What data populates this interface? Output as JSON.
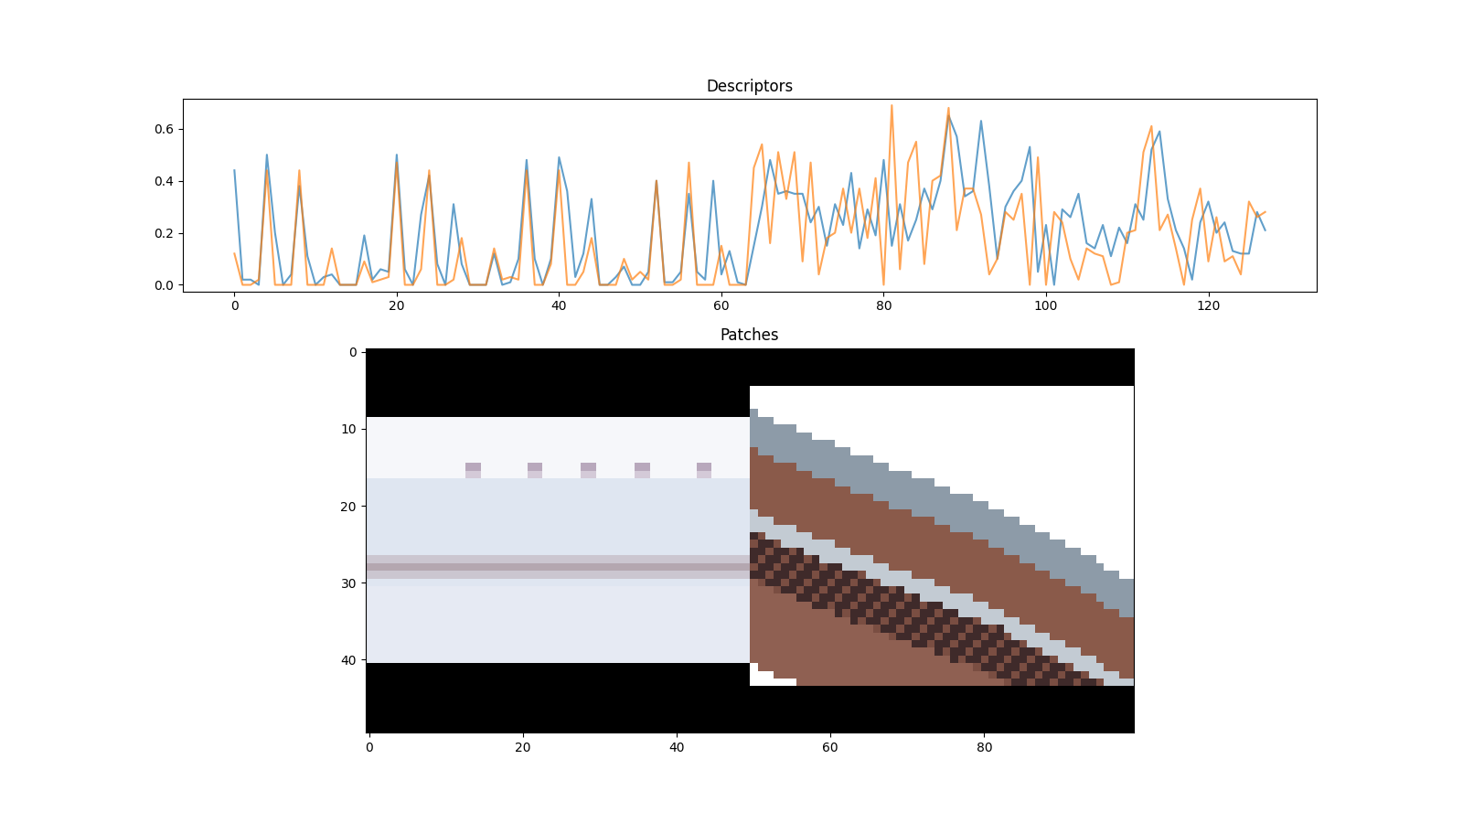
{
  "chart_data": [
    {
      "type": "line",
      "title": "Descriptors",
      "xlim": [
        -6.35,
        133.35
      ],
      "xticks": [
        0,
        20,
        40,
        60,
        80,
        100,
        120
      ],
      "ylim": [
        -0.025,
        0.715
      ],
      "yticks": [
        {
          "value": 0,
          "label": "0.0"
        },
        {
          "value": 0.2,
          "label": "0.2"
        },
        {
          "value": 0.4,
          "label": "0.4"
        },
        {
          "value": 0.6,
          "label": "0.6"
        }
      ],
      "series": [
        {
          "color": "#1f77b4",
          "values": [
            0.44,
            0.02,
            0.02,
            0.0,
            0.5,
            0.2,
            0.0,
            0.04,
            0.38,
            0.11,
            0.0,
            0.03,
            0.04,
            0.0,
            0.0,
            0.0,
            0.19,
            0.02,
            0.06,
            0.05,
            0.5,
            0.06,
            0.0,
            0.27,
            0.42,
            0.08,
            0.0,
            0.31,
            0.08,
            0.0,
            0.0,
            0.0,
            0.12,
            0.0,
            0.01,
            0.1,
            0.48,
            0.1,
            0.0,
            0.1,
            0.49,
            0.36,
            0.03,
            0.12,
            0.33,
            0.0,
            0.0,
            0.03,
            0.07,
            0.0,
            0.0,
            0.05,
            0.4,
            0.01,
            0.01,
            0.05,
            0.35,
            0.05,
            0.02,
            0.4,
            0.04,
            0.13,
            0.01,
            0.0,
            0.15,
            0.3,
            0.48,
            0.35,
            0.36,
            0.35,
            0.35,
            0.24,
            0.3,
            0.15,
            0.31,
            0.23,
            0.43,
            0.14,
            0.29,
            0.19,
            0.48,
            0.15,
            0.31,
            0.17,
            0.25,
            0.37,
            0.29,
            0.4,
            0.65,
            0.57,
            0.34,
            0.36,
            0.63,
            0.38,
            0.1,
            0.3,
            0.36,
            0.4,
            0.53,
            0.05,
            0.23,
            0.0,
            0.29,
            0.26,
            0.35,
            0.16,
            0.14,
            0.23,
            0.11,
            0.22,
            0.16,
            0.31,
            0.25,
            0.52,
            0.59,
            0.33,
            0.21,
            0.14,
            0.02,
            0.24,
            0.32,
            0.2,
            0.24,
            0.13,
            0.12,
            0.12,
            0.28,
            0.21
          ]
        },
        {
          "color": "#ff7f0e",
          "values": [
            0.12,
            0.0,
            0.0,
            0.02,
            0.44,
            0.0,
            0.0,
            0.0,
            0.44,
            0.0,
            0.0,
            0.0,
            0.14,
            0.0,
            0.0,
            0.0,
            0.09,
            0.01,
            0.02,
            0.03,
            0.47,
            0.0,
            0.0,
            0.06,
            0.44,
            0.0,
            0.0,
            0.02,
            0.18,
            0.0,
            0.0,
            0.0,
            0.14,
            0.02,
            0.03,
            0.02,
            0.44,
            0.0,
            0.0,
            0.08,
            0.44,
            0.0,
            0.0,
            0.05,
            0.18,
            0.0,
            0.0,
            0.0,
            0.1,
            0.02,
            0.05,
            0.02,
            0.4,
            0.0,
            0.0,
            0.02,
            0.47,
            0.0,
            0.0,
            0.0,
            0.15,
            0.0,
            0.0,
            0.0,
            0.45,
            0.54,
            0.16,
            0.51,
            0.33,
            0.51,
            0.09,
            0.47,
            0.04,
            0.18,
            0.2,
            0.37,
            0.2,
            0.37,
            0.18,
            0.41,
            0.0,
            0.69,
            0.06,
            0.47,
            0.55,
            0.08,
            0.4,
            0.42,
            0.68,
            0.21,
            0.37,
            0.37,
            0.27,
            0.04,
            0.1,
            0.28,
            0.25,
            0.35,
            0.0,
            0.49,
            0.0,
            0.28,
            0.24,
            0.1,
            0.02,
            0.14,
            0.12,
            0.11,
            0.0,
            0.01,
            0.2,
            0.21,
            0.51,
            0.61,
            0.21,
            0.27,
            0.14,
            0.0,
            0.25,
            0.37,
            0.09,
            0.26,
            0.09,
            0.11,
            0.04,
            0.32,
            0.26,
            0.28
          ]
        }
      ]
    },
    {
      "type": "image",
      "title": "Patches",
      "xlim": [
        -0.5,
        99.5
      ],
      "xticks": [
        0,
        20,
        40,
        60,
        80
      ],
      "ylim": [
        49.5,
        -0.5
      ],
      "yticks": [
        0,
        10,
        20,
        30,
        40
      ]
    }
  ]
}
